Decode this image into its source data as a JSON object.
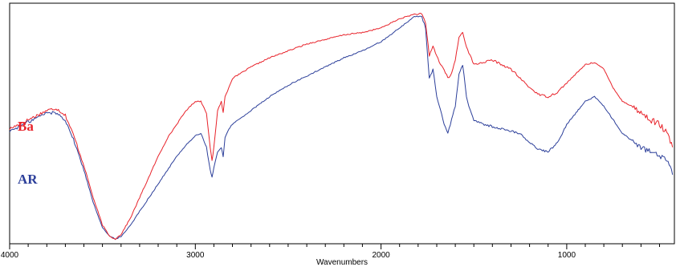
{
  "chart_data": {
    "type": "line",
    "title": "",
    "xlabel": "Wavenumbers",
    "ylabel": "",
    "xlim": [
      4000,
      420
    ],
    "ylim": [
      0,
      100
    ],
    "x_reversed": true,
    "grid": false,
    "legend": "inline-left",
    "xticks": [
      4000,
      3000,
      2000,
      1000
    ],
    "xtick_labels": [
      "4000",
      "3000",
      "2000",
      "1000"
    ],
    "series": [
      {
        "name": "Ba",
        "color": "#e8222a",
        "points": [
          [
            4000,
            48
          ],
          [
            3900,
            52
          ],
          [
            3800,
            56
          ],
          [
            3750,
            57
          ],
          [
            3700,
            54
          ],
          [
            3650,
            44
          ],
          [
            3600,
            32
          ],
          [
            3550,
            18
          ],
          [
            3500,
            6
          ],
          [
            3460,
            1
          ],
          [
            3430,
            0
          ],
          [
            3400,
            2
          ],
          [
            3350,
            9
          ],
          [
            3300,
            18
          ],
          [
            3250,
            27
          ],
          [
            3200,
            36
          ],
          [
            3150,
            44
          ],
          [
            3100,
            50
          ],
          [
            3050,
            56
          ],
          [
            3000,
            60
          ],
          [
            2970,
            60
          ],
          [
            2940,
            55
          ],
          [
            2920,
            40
          ],
          [
            2910,
            34
          ],
          [
            2900,
            40
          ],
          [
            2880,
            56
          ],
          [
            2860,
            60
          ],
          [
            2850,
            55
          ],
          [
            2840,
            62
          ],
          [
            2820,
            66
          ],
          [
            2800,
            70
          ],
          [
            2700,
            75
          ],
          [
            2600,
            79
          ],
          [
            2500,
            82
          ],
          [
            2400,
            85
          ],
          [
            2300,
            87
          ],
          [
            2200,
            89
          ],
          [
            2100,
            90
          ],
          [
            2000,
            92
          ],
          [
            1900,
            96
          ],
          [
            1820,
            98
          ],
          [
            1780,
            98
          ],
          [
            1760,
            94
          ],
          [
            1740,
            80
          ],
          [
            1720,
            84
          ],
          [
            1700,
            80
          ],
          [
            1680,
            76
          ],
          [
            1660,
            74
          ],
          [
            1640,
            70
          ],
          [
            1620,
            72
          ],
          [
            1600,
            78
          ],
          [
            1580,
            88
          ],
          [
            1560,
            90
          ],
          [
            1540,
            84
          ],
          [
            1520,
            80
          ],
          [
            1500,
            76
          ],
          [
            1450,
            77
          ],
          [
            1400,
            78
          ],
          [
            1350,
            76
          ],
          [
            1300,
            74
          ],
          [
            1250,
            70
          ],
          [
            1200,
            66
          ],
          [
            1150,
            63
          ],
          [
            1100,
            62
          ],
          [
            1050,
            64
          ],
          [
            1000,
            68
          ],
          [
            950,
            72
          ],
          [
            900,
            76
          ],
          [
            850,
            77
          ],
          [
            800,
            74
          ],
          [
            750,
            66
          ],
          [
            700,
            60
          ],
          [
            650,
            58
          ],
          [
            600,
            55
          ],
          [
            550,
            52
          ],
          [
            500,
            50
          ],
          [
            460,
            46
          ],
          [
            430,
            40
          ]
        ]
      },
      {
        "name": "AR",
        "color": "#2c3f9a",
        "points": [
          [
            4000,
            47
          ],
          [
            3900,
            51
          ],
          [
            3800,
            55
          ],
          [
            3750,
            55
          ],
          [
            3700,
            52
          ],
          [
            3650,
            42
          ],
          [
            3600,
            30
          ],
          [
            3550,
            16
          ],
          [
            3500,
            5
          ],
          [
            3460,
            1
          ],
          [
            3430,
            0
          ],
          [
            3400,
            1
          ],
          [
            3350,
            6
          ],
          [
            3300,
            12
          ],
          [
            3250,
            18
          ],
          [
            3200,
            24
          ],
          [
            3150,
            30
          ],
          [
            3100,
            36
          ],
          [
            3050,
            41
          ],
          [
            3000,
            45
          ],
          [
            2970,
            46
          ],
          [
            2940,
            40
          ],
          [
            2920,
            30
          ],
          [
            2910,
            27
          ],
          [
            2900,
            31
          ],
          [
            2880,
            38
          ],
          [
            2860,
            40
          ],
          [
            2850,
            36
          ],
          [
            2840,
            44
          ],
          [
            2820,
            48
          ],
          [
            2800,
            50
          ],
          [
            2700,
            56
          ],
          [
            2600,
            62
          ],
          [
            2500,
            67
          ],
          [
            2400,
            71
          ],
          [
            2300,
            75
          ],
          [
            2200,
            79
          ],
          [
            2100,
            82
          ],
          [
            2000,
            86
          ],
          [
            1900,
            92
          ],
          [
            1820,
            97
          ],
          [
            1780,
            97
          ],
          [
            1760,
            92
          ],
          [
            1740,
            70
          ],
          [
            1720,
            74
          ],
          [
            1700,
            62
          ],
          [
            1680,
            56
          ],
          [
            1660,
            50
          ],
          [
            1640,
            46
          ],
          [
            1620,
            52
          ],
          [
            1600,
            58
          ],
          [
            1580,
            72
          ],
          [
            1560,
            76
          ],
          [
            1540,
            62
          ],
          [
            1520,
            56
          ],
          [
            1500,
            52
          ],
          [
            1450,
            50
          ],
          [
            1400,
            49
          ],
          [
            1350,
            48
          ],
          [
            1300,
            47
          ],
          [
            1250,
            46
          ],
          [
            1200,
            42
          ],
          [
            1150,
            39
          ],
          [
            1100,
            38
          ],
          [
            1050,
            42
          ],
          [
            1000,
            50
          ],
          [
            950,
            55
          ],
          [
            900,
            60
          ],
          [
            850,
            62
          ],
          [
            800,
            58
          ],
          [
            750,
            52
          ],
          [
            700,
            46
          ],
          [
            650,
            43
          ],
          [
            600,
            40
          ],
          [
            550,
            38
          ],
          [
            500,
            36
          ],
          [
            460,
            34
          ],
          [
            430,
            28
          ]
        ]
      }
    ],
    "annotations": [
      {
        "text": "Ba",
        "color": "#e8222a"
      },
      {
        "text": "AR",
        "color": "#2c3f9a"
      }
    ]
  }
}
